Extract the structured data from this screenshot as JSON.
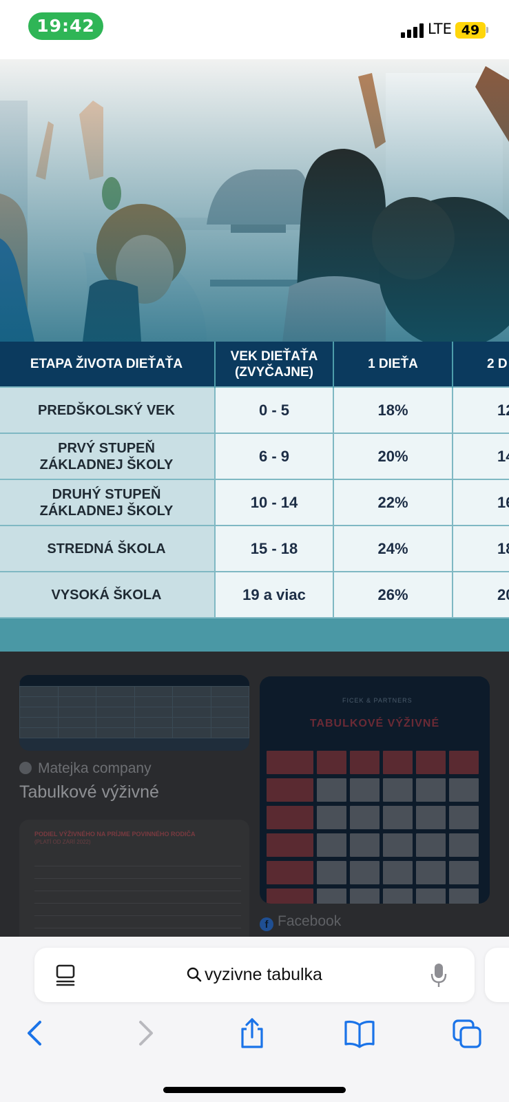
{
  "status_bar": {
    "time": "19:42",
    "network": "LTE",
    "battery": "49"
  },
  "table": {
    "headers": [
      "ETAPA ŽIVOTA DIEŤAŤA",
      "VEK DIEŤAŤA (ZVYČAJNE)",
      "1 DIEŤA",
      "2 D"
    ],
    "rows": [
      {
        "stage": "PREDŠKOLSKÝ VEK",
        "age": "0 - 5",
        "one": "18%",
        "two": "12"
      },
      {
        "stage": "PRVÝ STUPEŇ ZÁKLADNEJ ŠKOLY",
        "age": "6 - 9",
        "one": "20%",
        "two": "14"
      },
      {
        "stage": "DRUHÝ STUPEŇ ZÁKLADNEJ ŠKOLY",
        "age": "10 - 14",
        "one": "22%",
        "two": "16"
      },
      {
        "stage": "STREDNÁ ŠKOLA",
        "age": "15 - 18",
        "one": "24%",
        "two": "18"
      },
      {
        "stage": "VYSOKÁ ŠKOLA",
        "age": "19 a viac",
        "one": "26%",
        "two": "20"
      }
    ]
  },
  "results": {
    "result1": {
      "source": "Matejka company",
      "title": "Tabulkové výživné"
    },
    "result2": {
      "source": "Facebook",
      "thumb_title": "TABULKOVÉ VÝŽIVNÉ",
      "thumb_logo": "FICEK & PARTNERS"
    },
    "result3": {
      "thumb_title": "PODIEL VÝŽIVNÉHO NA PRÍJME POVINNÉHO RODIČA",
      "thumb_subtitle": "(PLATÍ OD ZÁRÍ 2022)"
    }
  },
  "toolbar": {
    "query": "vyzivne tabulka"
  },
  "icons": {
    "reader": "reader-icon",
    "search": "search-icon",
    "mic": "microphone-icon",
    "back": "back-icon",
    "forward": "forward-icon",
    "share": "share-icon",
    "bookmarks": "bookmarks-icon",
    "tabs": "tabs-icon"
  }
}
